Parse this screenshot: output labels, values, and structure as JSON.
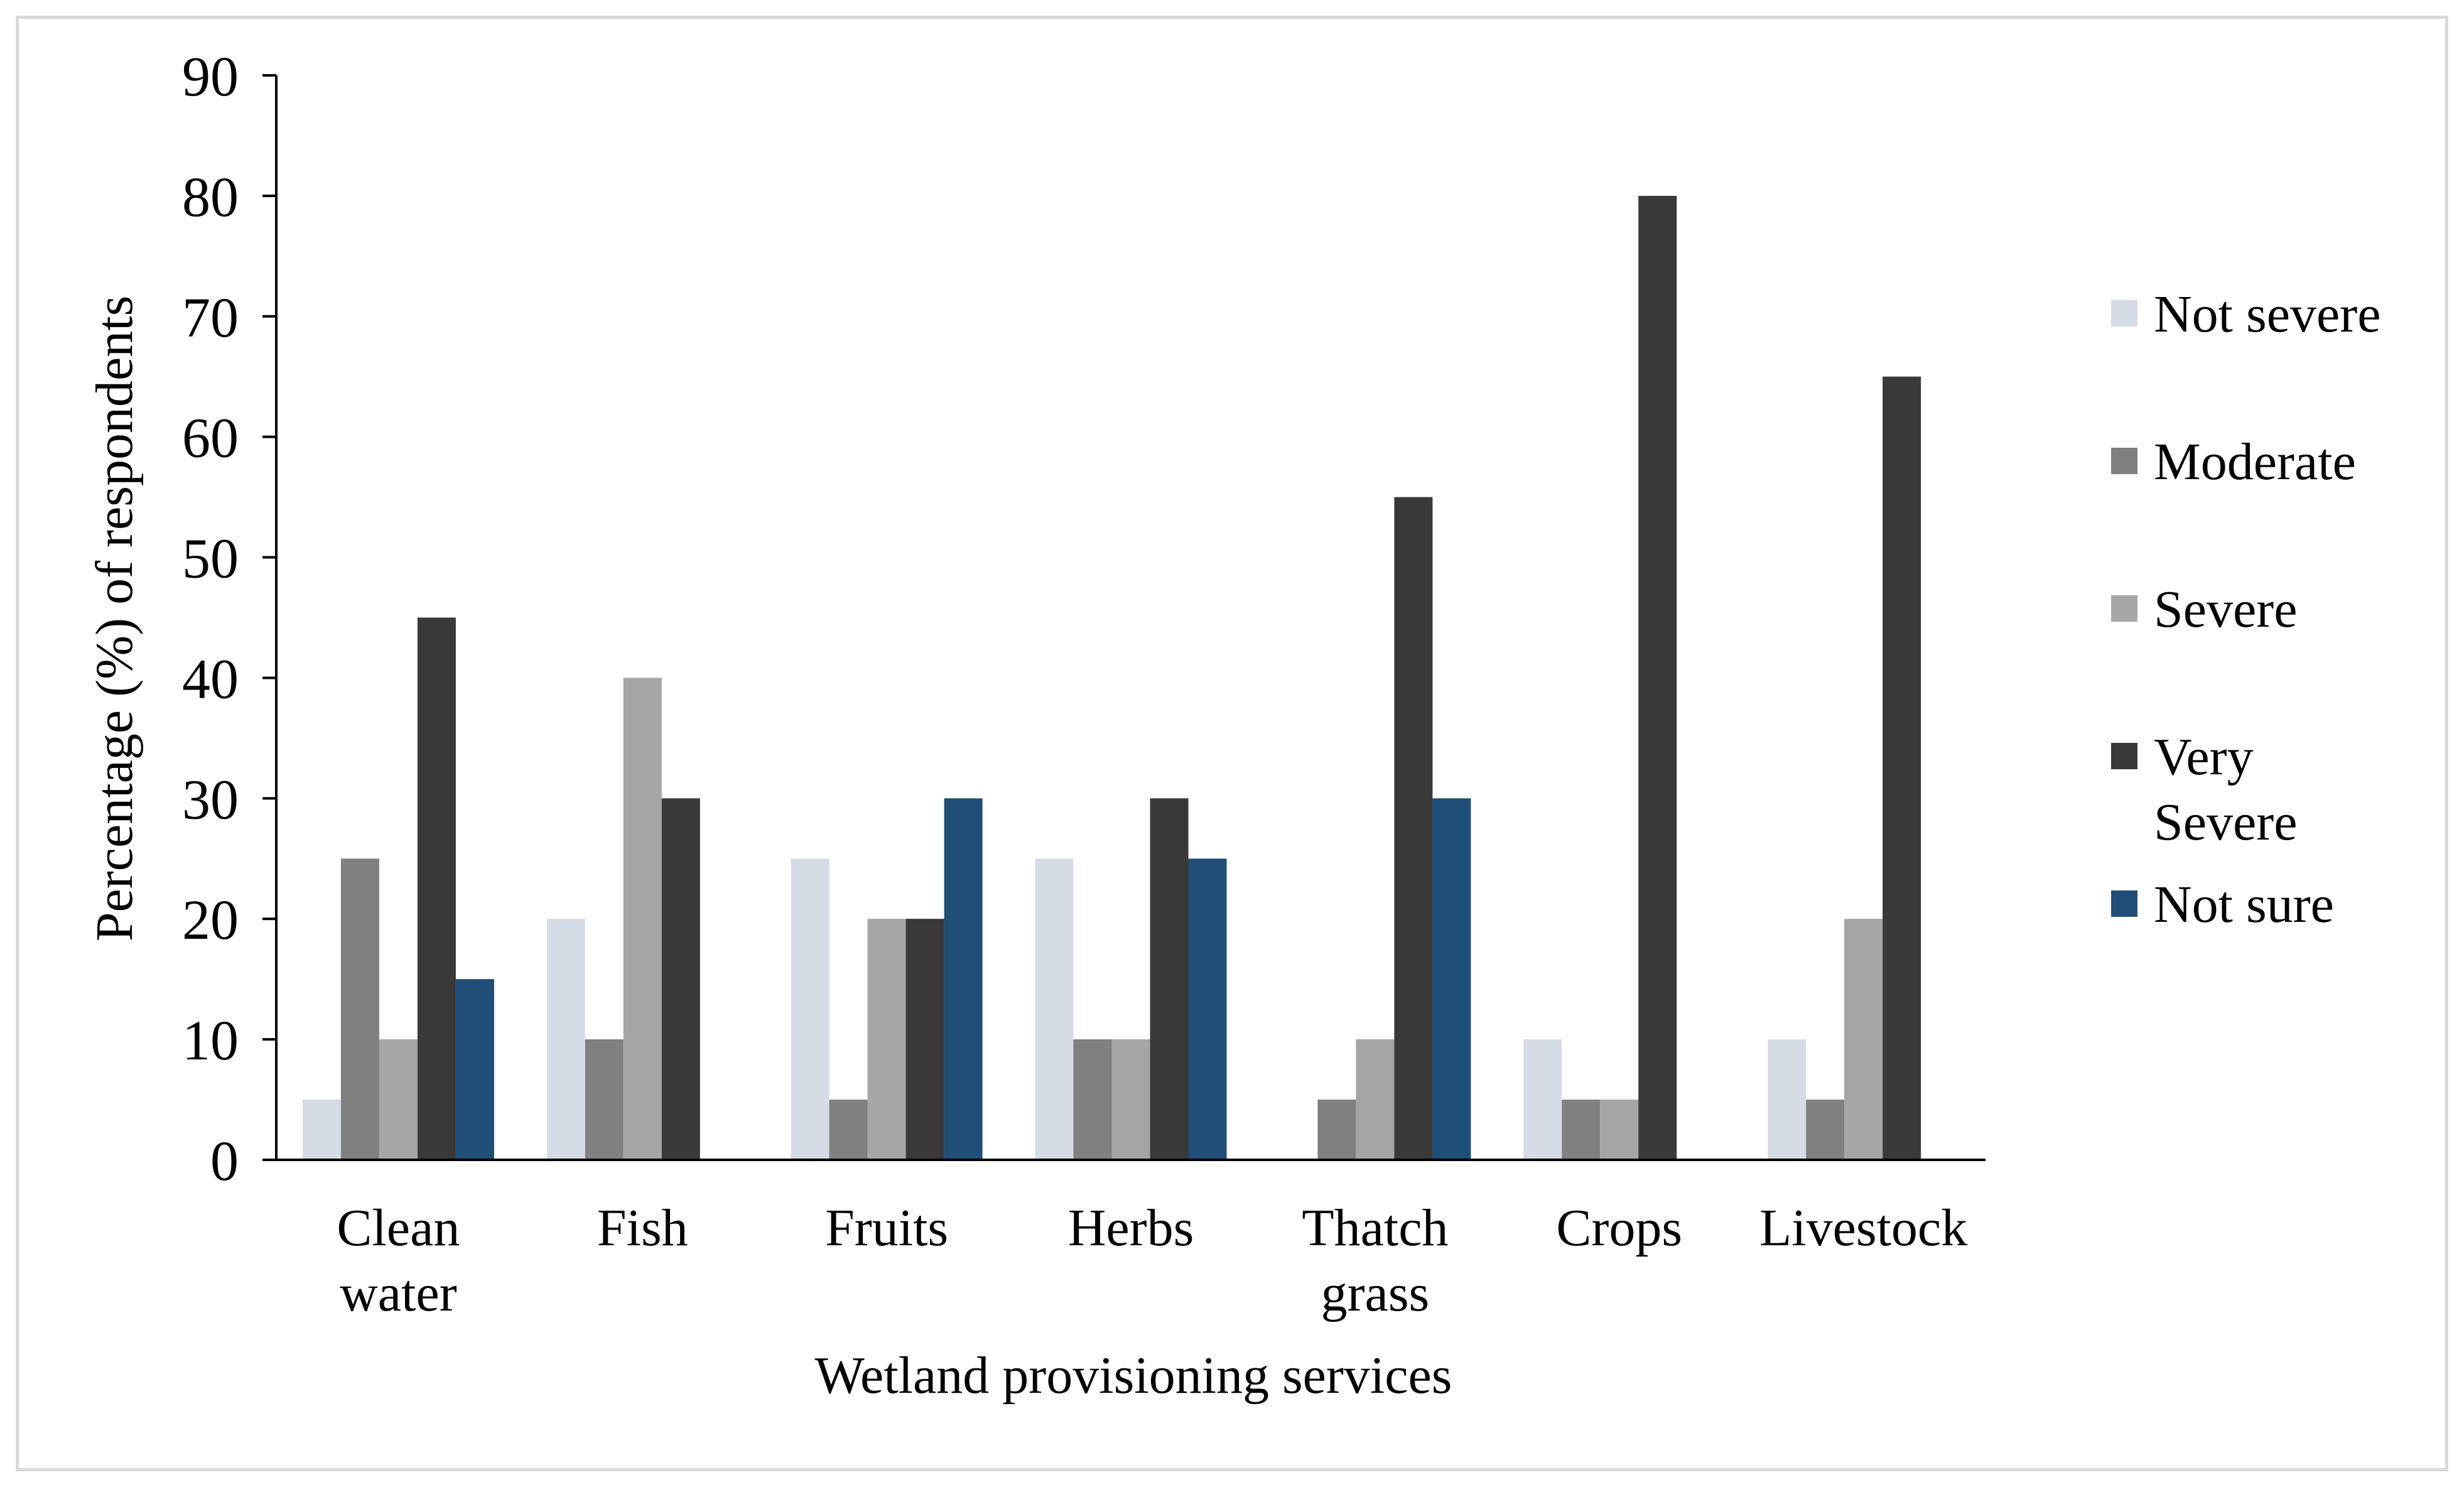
{
  "chart_data": {
    "type": "bar",
    "title": "",
    "xlabel": "Wetland provisioning services",
    "ylabel": "Percentage (%) of respondents",
    "ylim": [
      0,
      90
    ],
    "ytick_step": 10,
    "grid": false,
    "legend_position": "right",
    "categories": [
      [
        "Clean",
        "water"
      ],
      [
        "Fish"
      ],
      [
        "Fruits"
      ],
      [
        "Herbs"
      ],
      [
        "Thatch",
        "grass"
      ],
      [
        "Crops"
      ],
      [
        "Livestock"
      ]
    ],
    "series": [
      {
        "name": [
          "Not severe"
        ],
        "color": "#d6dce5",
        "values": [
          5,
          20,
          25,
          25,
          0,
          10,
          10
        ]
      },
      {
        "name": [
          "Moderate"
        ],
        "color": "#808080",
        "values": [
          25,
          10,
          5,
          10,
          5,
          5,
          5
        ]
      },
      {
        "name": [
          "Severe"
        ],
        "color": "#a6a6a6",
        "values": [
          10,
          40,
          20,
          10,
          10,
          5,
          20
        ]
      },
      {
        "name": [
          "Very",
          "Severe"
        ],
        "color": "#3b3838",
        "values": [
          45,
          30,
          20,
          30,
          55,
          80,
          65
        ]
      },
      {
        "name": [
          "Not sure"
        ],
        "color": "#1f4e79",
        "values": [
          15,
          0,
          30,
          25,
          30,
          0,
          0
        ]
      }
    ]
  }
}
